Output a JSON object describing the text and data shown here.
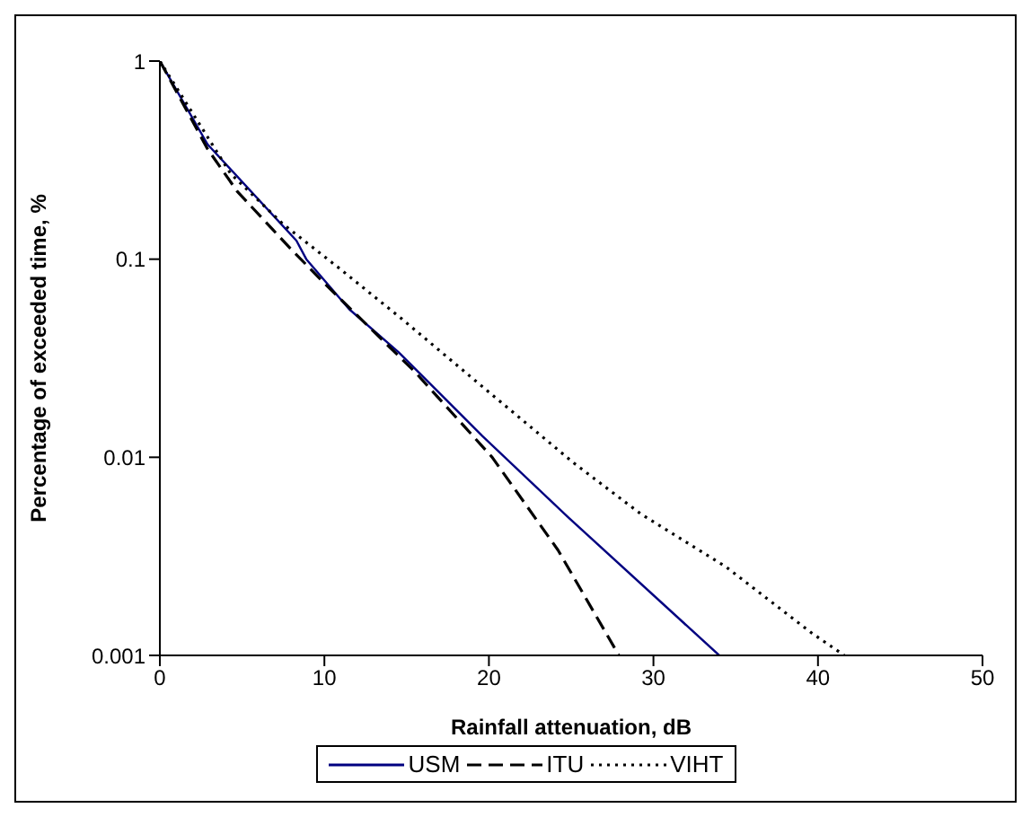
{
  "chart_data": {
    "type": "line",
    "xlabel": "Rainfall attenuation, dB",
    "ylabel": "Percentage of exceeded time, %",
    "xlim": [
      0,
      50
    ],
    "xticks": [
      0,
      10,
      20,
      30,
      40,
      50
    ],
    "ylim": [
      0.001,
      1
    ],
    "yticks": [
      0.001,
      0.01,
      0.1,
      1
    ],
    "log": true,
    "legend": "bottom",
    "marker": "none",
    "series": [
      {
        "name": "USM",
        "color": "#000080",
        "line_style": "solid",
        "x": [
          0,
          2.9,
          8.3,
          8.9,
          11.5,
          14.5,
          19.6,
          24.8,
          34
        ],
        "values": [
          1,
          0.38,
          0.124,
          0.1,
          0.056,
          0.034,
          0.0128,
          0.005,
          0.001
        ]
      },
      {
        "name": "ITU",
        "color": "#000000",
        "line_style": "dashed",
        "x": [
          0,
          2.9,
          4.7,
          7.9,
          9.9,
          15.5,
          20.2,
          24.2,
          27.9
        ],
        "values": [
          1,
          0.36,
          0.22,
          0.114,
          0.077,
          0.027,
          0.01,
          0.0034,
          0.001
        ]
      },
      {
        "name": "VIHT",
        "color": "#000000",
        "line_style": "dotted",
        "x": [
          0,
          4.3,
          7.5,
          10.9,
          14.7,
          20.4,
          25.2,
          29.2,
          34.4,
          39.6,
          41.6
        ],
        "values": [
          1,
          0.27,
          0.15,
          0.09,
          0.05,
          0.02,
          0.0093,
          0.0052,
          0.0028,
          0.0013,
          0.001
        ]
      }
    ]
  }
}
